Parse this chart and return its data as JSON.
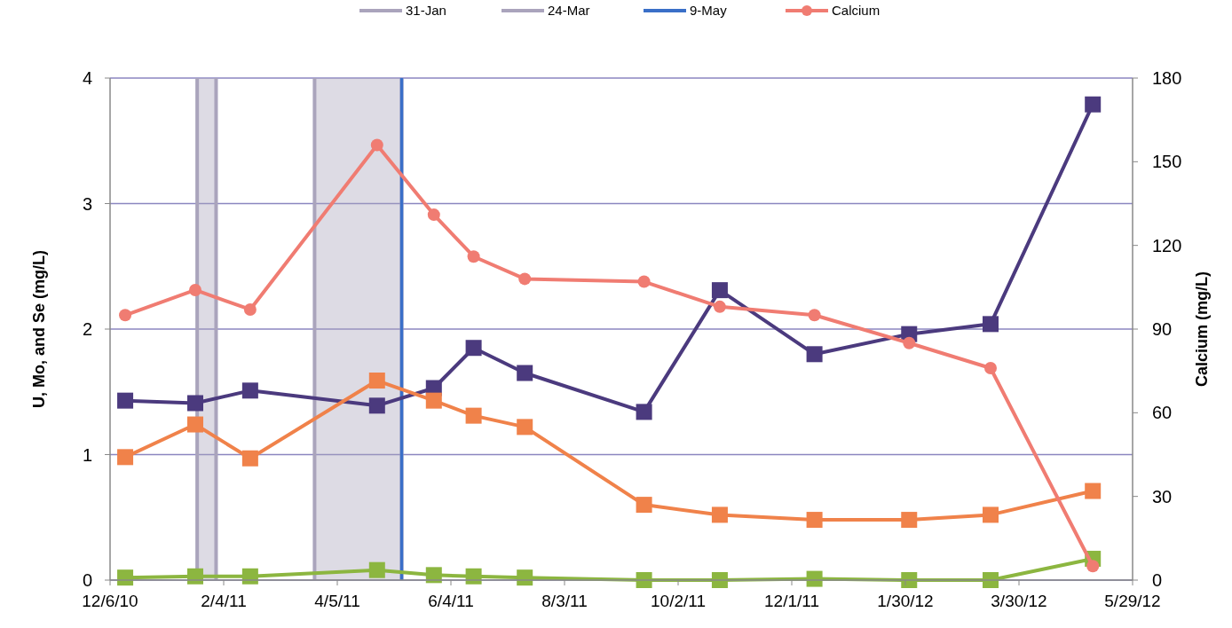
{
  "chart_data": {
    "type": "line",
    "ylabel": "U, Mo, and Se (mg/L)",
    "y2label": "Calcium (mg/L)",
    "x": [
      "2010-12-14",
      "2011-01-20",
      "2011-02-18",
      "2011-04-26",
      "2011-05-26",
      "2011-06-16",
      "2011-07-13",
      "2011-09-14",
      "2011-10-24",
      "2011-12-13",
      "2012-02-01",
      "2012-03-15",
      "2012-05-08"
    ],
    "series": [
      {
        "color": "#4b3a7e",
        "marker": "square",
        "values": [
          1.43,
          1.41,
          1.51,
          1.39,
          1.53,
          1.85,
          1.65,
          1.34,
          2.31,
          1.8,
          1.96,
          2.04,
          3.79
        ]
      },
      {
        "color": "#f0824a",
        "marker": "square",
        "values": [
          0.98,
          1.24,
          0.97,
          1.59,
          1.43,
          1.31,
          1.22,
          0.6,
          0.52,
          0.48,
          0.48,
          0.52,
          0.71
        ]
      },
      {
        "color": "#8cb640",
        "marker": "square",
        "values": [
          0.02,
          0.03,
          0.03,
          0.08,
          0.04,
          0.03,
          0.02,
          0,
          0,
          0.01,
          0,
          0,
          0.17
        ]
      },
      {
        "name": "Calcium",
        "color": "#f07c72",
        "marker": "circle",
        "axis": "y2",
        "values": [
          95,
          104,
          97,
          156,
          131,
          116,
          108,
          107,
          98,
          95,
          85,
          76,
          5
        ]
      }
    ],
    "bands": [
      {
        "axis": "x",
        "from": "2011-01-21",
        "to": "2011-01-31",
        "label": "31-Jan",
        "color": "#aaa4bc"
      },
      {
        "axis": "x",
        "from": "2011-03-24",
        "to": "2011-05-09",
        "label": "24-Mar",
        "color": "#aaa4bc"
      }
    ],
    "ref_lines": [
      {
        "axis": "x",
        "value": "2011-05-09",
        "label": "9-May",
        "color": "#3a6fc8"
      }
    ],
    "xlim": [
      "2010-12-06",
      "2012-05-29"
    ],
    "xticks": [
      {
        "value": "2010-12-06",
        "label": "12/6/10"
      },
      {
        "value": "2011-02-04",
        "label": "2/4/11"
      },
      {
        "value": "2011-04-05",
        "label": "4/5/11"
      },
      {
        "value": "2011-06-04",
        "label": "6/4/11"
      },
      {
        "value": "2011-08-03",
        "label": "8/3/11"
      },
      {
        "value": "2011-10-02",
        "label": "10/2/11"
      },
      {
        "value": "2011-12-01",
        "label": "12/1/11"
      },
      {
        "value": "2012-01-30",
        "label": "1/30/12"
      },
      {
        "value": "2012-03-30",
        "label": "3/30/12"
      },
      {
        "value": "2012-05-29",
        "label": "5/29/12"
      }
    ],
    "ylim": [
      0,
      4
    ],
    "yticks": [
      0,
      1,
      2,
      3,
      4
    ],
    "y2lim": [
      0,
      180
    ],
    "y2ticks": [
      0,
      30,
      60,
      90,
      120,
      150,
      180
    ],
    "grid": "y",
    "legend": "top",
    "line_style": "solid"
  }
}
